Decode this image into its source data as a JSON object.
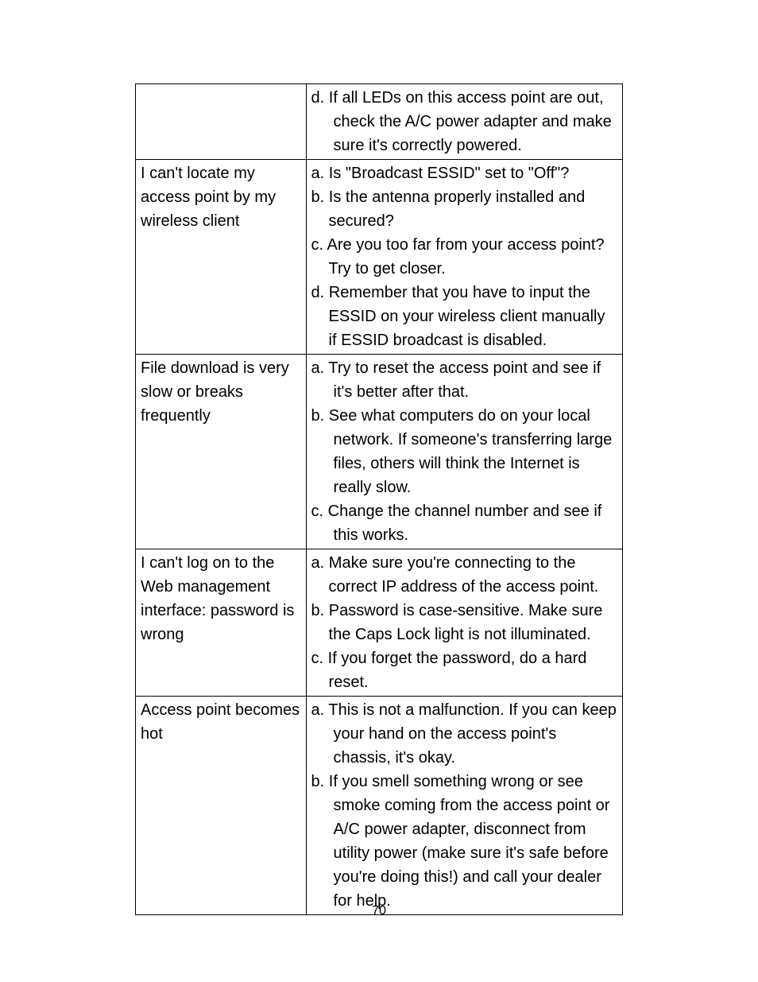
{
  "page_number": "70",
  "table": {
    "rows": [
      {
        "problem": "",
        "solutions": [
          "d.  If all LEDs on this access point are out, check the A/C power adapter and make sure it's correctly powered."
        ]
      },
      {
        "problem": "I can't locate my access point by my wireless client",
        "solutions": [
          "a. Is \"Broadcast ESSID\" set to \"Off\"?",
          "b. Is the antenna properly installed and secured?",
          "c. Are you too far from your access point? Try to get closer.",
          "d. Remember that you have to input the ESSID on your wireless client manually if ESSID broadcast is disabled."
        ]
      },
      {
        "problem": "File download is very slow or breaks frequently",
        "solutions": [
          "a.  Try to reset the access point and see if it's better after that.",
          "b.  See what computers do on your local network. If someone's transferring large files, others will think the Internet is really slow.",
          "c.  Change the channel number and see if this works."
        ]
      },
      {
        "problem": "I can't log on to the Web management interface: password is wrong",
        "solutions": [
          "a. Make sure you're connecting to the correct IP address of the access point.",
          "b. Password is case-sensitive. Make sure the Caps Lock light is not illuminated.",
          "c. If you forget the password, do a hard reset."
        ]
      },
      {
        "problem": "Access point becomes hot",
        "solutions": [
          "a.  This is not a malfunction. If you can keep your hand on the access point's chassis, it's okay.",
          "b.  If you smell something wrong or see smoke coming from the access point or A/C power adapter, disconnect from utility power (make sure it's safe before you're doing this!) and call your dealer for help."
        ]
      }
    ]
  }
}
